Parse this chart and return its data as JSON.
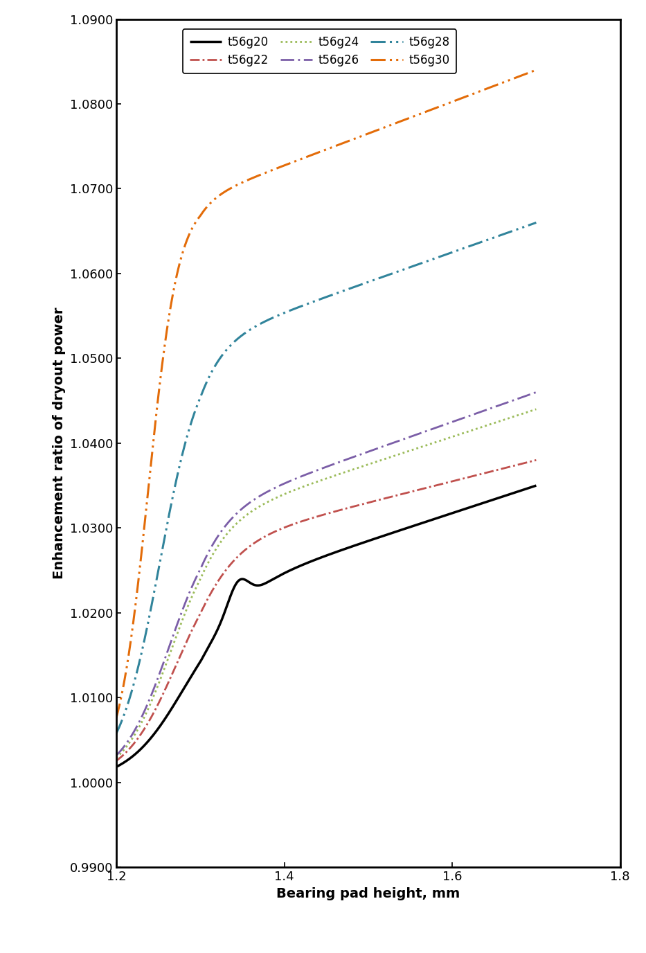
{
  "title": "",
  "xlabel": "Bearing pad height, mm",
  "ylabel": "Enhancement ratio of dryout power",
  "xlim": [
    1.2,
    1.8
  ],
  "ylim": [
    0.99,
    1.09
  ],
  "xticks": [
    1.2,
    1.4,
    1.6,
    1.8
  ],
  "yticks": [
    0.99,
    1.0,
    1.01,
    1.02,
    1.03,
    1.04,
    1.05,
    1.06,
    1.07,
    1.08,
    1.09
  ],
  "series": [
    {
      "label": "t56g20",
      "color": "#000000",
      "lw": 2.5
    },
    {
      "label": "t56g22",
      "color": "#c0504d",
      "lw": 2.0
    },
    {
      "label": "t56g24",
      "color": "#9bbb59",
      "lw": 2.0
    },
    {
      "label": "t56g26",
      "color": "#7b5ea7",
      "lw": 2.0
    },
    {
      "label": "t56g28",
      "color": "#31849b",
      "lw": 2.2
    },
    {
      "label": "t56g30",
      "color": "#e36c09",
      "lw": 2.2
    }
  ],
  "background_color": "#ffffff",
  "legend_fontsize": 12,
  "axis_fontsize": 14,
  "tick_fontsize": 13
}
